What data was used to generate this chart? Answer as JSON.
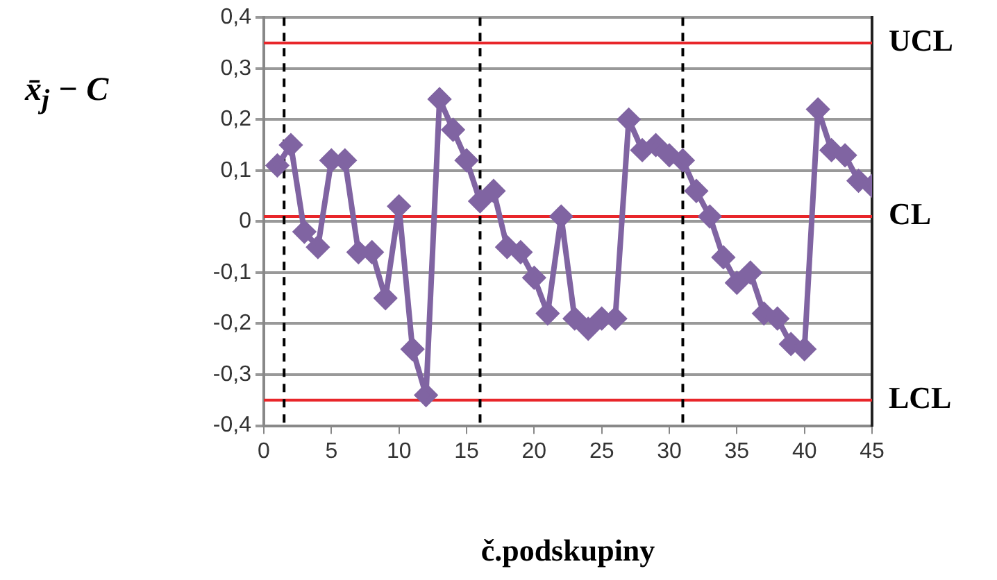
{
  "chart_data": {
    "type": "line",
    "xlabel": "č.podskupiny",
    "ylabel": "x̄$_{j}$ − C",
    "x": [
      1,
      2,
      3,
      4,
      5,
      6,
      7,
      8,
      9,
      10,
      11,
      12,
      13,
      14,
      15,
      16,
      17,
      18,
      19,
      20,
      21,
      22,
      23,
      24,
      25,
      26,
      27,
      28,
      29,
      30,
      31,
      32,
      33,
      34,
      35,
      36,
      37,
      38,
      39,
      40,
      41,
      42,
      43,
      44,
      45
    ],
    "series": [
      {
        "color": "#8064a2",
        "values": [
          0.11,
          0.15,
          -0.02,
          -0.05,
          0.12,
          0.12,
          -0.06,
          -0.06,
          -0.15,
          0.03,
          -0.25,
          -0.34,
          0.24,
          0.18,
          0.12,
          0.04,
          0.06,
          -0.05,
          -0.06,
          -0.11,
          -0.18,
          0.01,
          -0.19,
          -0.21,
          -0.19,
          -0.19,
          0.2,
          0.14,
          0.15,
          0.13,
          0.12,
          0.06,
          0.01,
          -0.07,
          -0.12,
          -0.1,
          -0.18,
          -0.19,
          -0.24,
          -0.25,
          0.22,
          0.14,
          0.13,
          0.08,
          0.07
        ]
      }
    ],
    "xlim": [
      0,
      45
    ],
    "xticks": [
      0,
      5,
      10,
      15,
      20,
      25,
      30,
      35,
      40,
      45
    ],
    "ylim": [
      -0.4,
      0.4
    ],
    "yticks": [
      {
        "value": -0.4,
        "label": "-0,4"
      },
      {
        "value": -0.3,
        "label": "-0,3"
      },
      {
        "value": -0.2,
        "label": "-0,2"
      },
      {
        "value": -0.1,
        "label": "-0,1"
      },
      {
        "value": 0,
        "label": "0"
      },
      {
        "value": 0.1,
        "label": "0,1"
      },
      {
        "value": 0.2,
        "label": "0,2"
      },
      {
        "value": 0.3,
        "label": "0,3"
      },
      {
        "value": 0.4,
        "label": "0,4"
      }
    ],
    "ref_lines": [
      {
        "axis": "y",
        "value": 0.35,
        "label": "UCL",
        "color": "#e8262a",
        "line_style": "solid"
      },
      {
        "axis": "y",
        "value": 0.01,
        "label": "CL",
        "color": "#e8262a",
        "line_style": "solid"
      },
      {
        "axis": "y",
        "value": -0.35,
        "label": "LCL",
        "color": "#e8262a",
        "line_style": "solid"
      },
      {
        "axis": "x",
        "value": 1.5,
        "color": "#000000",
        "line_style": "dashed"
      },
      {
        "axis": "x",
        "value": 16,
        "color": "#000000",
        "line_style": "dashed"
      },
      {
        "axis": "x",
        "value": 31,
        "color": "#000000",
        "line_style": "dashed"
      }
    ],
    "grid": "y",
    "legend": false,
    "marker": "diamond",
    "line_style": "solid"
  }
}
